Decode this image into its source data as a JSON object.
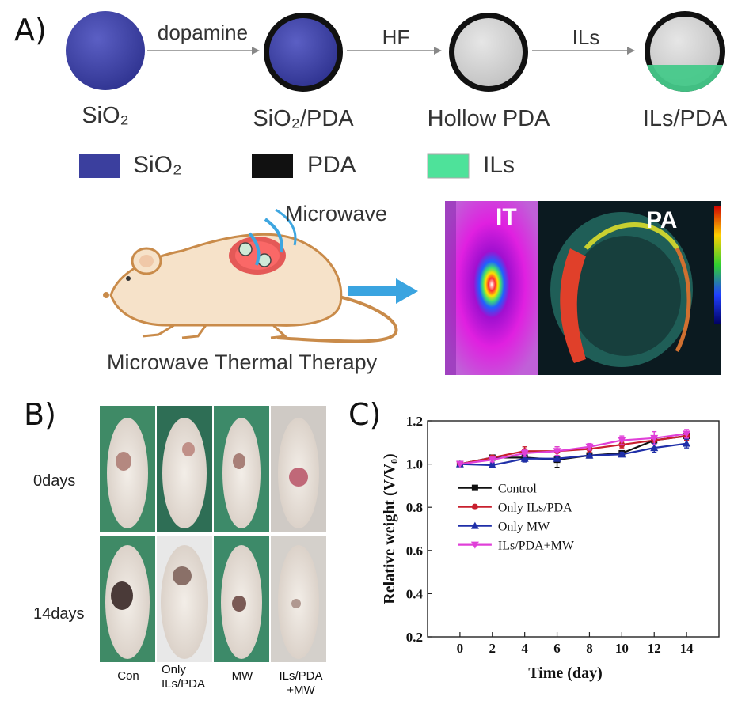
{
  "panel_a": {
    "label": "A)",
    "steps": [
      "SiO₂",
      "SiO₂/PDA",
      "Hollow PDA",
      "ILs/PDA"
    ],
    "arrows": [
      "dopamine",
      "HF",
      "ILs"
    ],
    "legend": [
      {
        "label": "SiO₂",
        "color": "#3b3f9e"
      },
      {
        "label": "PDA",
        "color": "#111111"
      },
      {
        "label": "ILs",
        "color": "#4ee29a"
      }
    ],
    "microwave_label": "Microwave",
    "therapy_label": "Microwave Thermal Therapy",
    "imaging_labels": [
      "IT",
      "PA"
    ]
  },
  "panel_b": {
    "label": "B)",
    "rows": [
      "0days",
      "14days"
    ],
    "columns": [
      "Con",
      "Only\nILs/PDA",
      "MW",
      "ILs/PDA\n+MW"
    ]
  },
  "panel_c": {
    "label": "C)",
    "chart_data": {
      "type": "line",
      "xlabel": "Time (day)",
      "ylabel": "Relative weight (V/V₀)",
      "xlim": [
        -2,
        16
      ],
      "ylim": [
        0.2,
        1.2
      ],
      "xticks": [
        0,
        2,
        4,
        6,
        8,
        10,
        12,
        14
      ],
      "yticks": [
        0.2,
        0.4,
        0.6,
        0.8,
        1.0,
        1.2
      ],
      "legend_position": "center-left",
      "series": [
        {
          "name": "Control",
          "color": "#111111",
          "marker": "square",
          "x": [
            0,
            2,
            4,
            6,
            8,
            10,
            12,
            14
          ],
          "y": [
            1.0,
            1.03,
            1.03,
            1.02,
            1.04,
            1.05,
            1.11,
            1.13
          ],
          "err": [
            0.0,
            0.01,
            0.02,
            0.035,
            0.01,
            0.01,
            0.02,
            0.02
          ]
        },
        {
          "name": "Only ILs/PDA",
          "color": "#c8202f",
          "marker": "circle",
          "x": [
            0,
            2,
            4,
            6,
            8,
            10,
            12,
            14
          ],
          "y": [
            1.0,
            1.03,
            1.06,
            1.06,
            1.07,
            1.09,
            1.11,
            1.13
          ],
          "err": [
            0.0,
            0.01,
            0.02,
            0.02,
            0.015,
            0.015,
            0.02,
            0.02
          ]
        },
        {
          "name": "Only MW",
          "color": "#1f2fa8",
          "marker": "triangle",
          "x": [
            0,
            2,
            4,
            6,
            8,
            10,
            12,
            14
          ],
          "y": [
            1.0,
            0.995,
            1.025,
            1.025,
            1.04,
            1.045,
            1.075,
            1.095
          ],
          "err": [
            0.0,
            0.01,
            0.015,
            0.01,
            0.01,
            0.01,
            0.02,
            0.02
          ]
        },
        {
          "name": "ILs/PDA+MW",
          "color": "#e040d8",
          "marker": "triangle-down",
          "x": [
            0,
            2,
            4,
            6,
            8,
            10,
            12,
            14
          ],
          "y": [
            1.0,
            1.02,
            1.05,
            1.06,
            1.08,
            1.11,
            1.12,
            1.14
          ],
          "err": [
            0.0,
            0.01,
            0.015,
            0.02,
            0.015,
            0.02,
            0.03,
            0.02
          ]
        }
      ]
    }
  }
}
